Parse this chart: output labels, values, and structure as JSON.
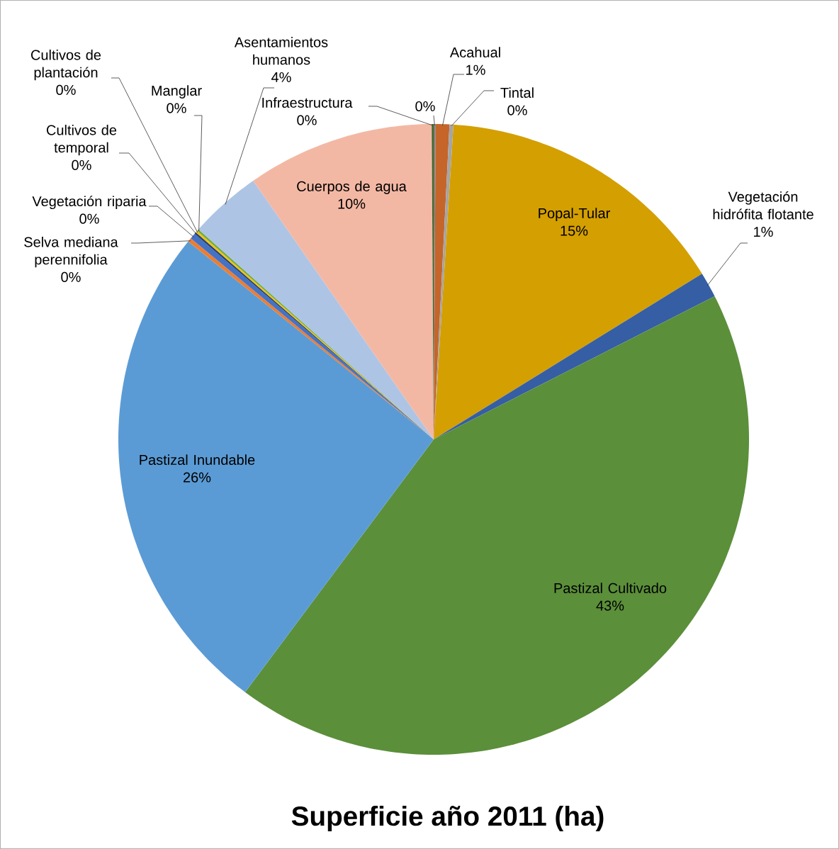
{
  "chart_data": {
    "type": "pie",
    "title": "Superficie año 2011 (ha)",
    "categories": [
      null,
      "Acahual",
      "Tintal",
      "Popal-Tular",
      "Vegetación hidrófita flotante",
      "Pastizal Cultivado",
      "Pastizal Inundable",
      "Selva mediana perennifolia",
      "Vegetación riparia",
      "Cultivos de temporal",
      "Cultivos de plantación",
      "Manglar",
      "Asentamientos humanos",
      "Cuerpos de agua",
      "Infraestructura"
    ],
    "values": [
      0.1,
      0.7,
      0.2,
      15.2,
      1.3,
      42.7,
      25.6,
      0.2,
      0.3,
      0.1,
      0.1,
      0.1,
      3.7,
      9.6,
      0.1
    ],
    "colors": [
      "#7f7f7f",
      "#c5652a",
      "#a5a5a5",
      "#d49f00",
      "#355ea4",
      "#5b8f3a",
      "#5b9bd5",
      "#ed7d31",
      "#4472c4",
      "#264478",
      "#ffc000",
      "#70ad47",
      "#aec4e5",
      "#f3b8a4",
      "#43682b"
    ],
    "value_labels": [
      "0%",
      "1%",
      "0%",
      "15%",
      "1%",
      "43%",
      "26%",
      "0%",
      "0%",
      "0%",
      "0%",
      "0%",
      "4%",
      "10%",
      "0%"
    ]
  }
}
